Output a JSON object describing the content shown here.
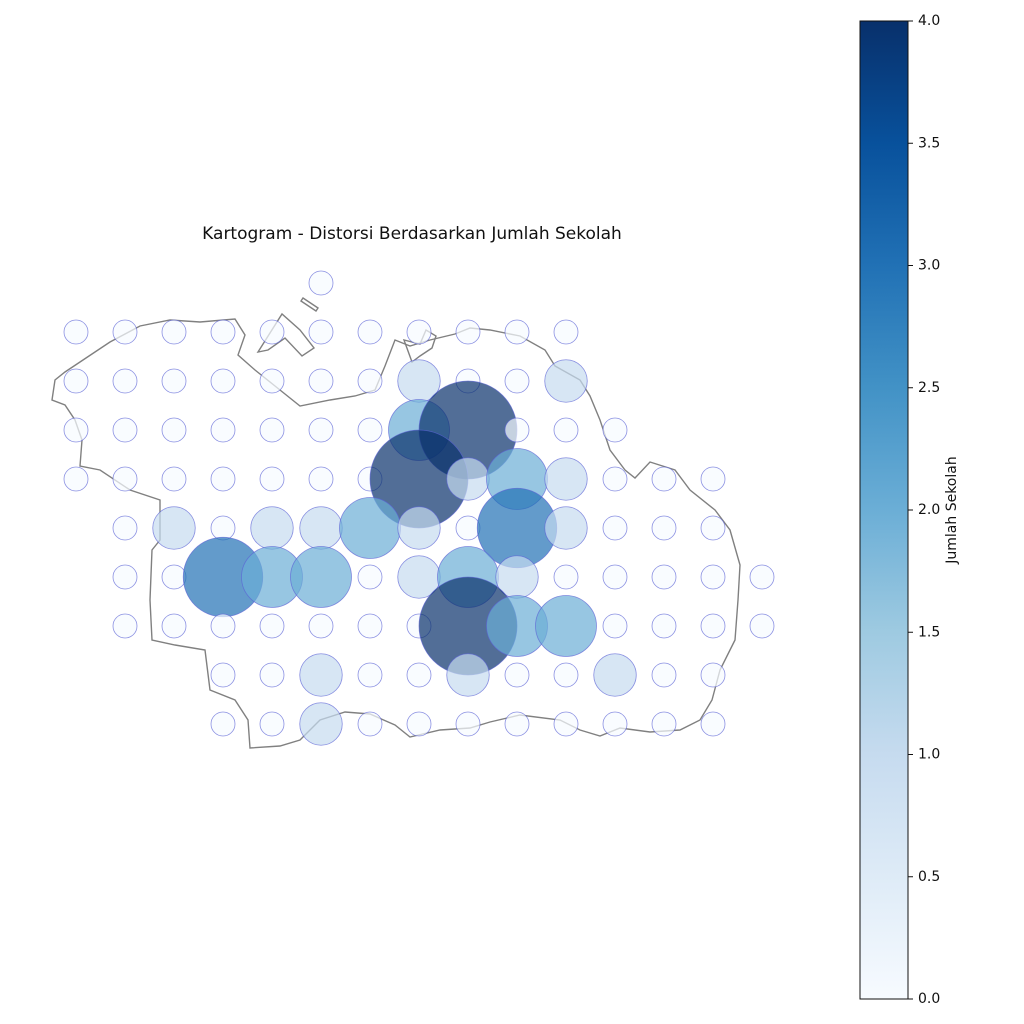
{
  "chart_data": {
    "type": "bubble-grid",
    "title": "Kartogram - Distorsi Berdasarkan Jumlah Sekolah",
    "colorbar_label": "Jumlah Sekolah",
    "clim": [
      0,
      4
    ],
    "cticks": [
      {
        "value": 0,
        "label": "0.0"
      },
      {
        "value": 0.5,
        "label": "0.5"
      },
      {
        "value": 1,
        "label": "1.0"
      },
      {
        "value": 1.5,
        "label": "1.5"
      },
      {
        "value": 2,
        "label": "2.0"
      },
      {
        "value": 2.5,
        "label": "2.5"
      },
      {
        "value": 3,
        "label": "3.0"
      },
      {
        "value": 3.5,
        "label": "3.5"
      },
      {
        "value": 4,
        "label": "4.0"
      }
    ],
    "colormap": [
      "#f7fbff",
      "#deebf7",
      "#c6dbef",
      "#9ecae1",
      "#6baed6",
      "#4292c6",
      "#2171b5",
      "#08519c",
      "#08306b"
    ],
    "alpha": 0.7,
    "edgecolor": "#5b63d6",
    "values": [
      [
        null,
        null,
        null,
        null,
        null,
        0,
        null,
        null,
        null,
        null,
        null,
        null,
        null,
        null,
        null
      ],
      [
        0,
        0,
        0,
        0,
        0,
        0,
        0,
        0,
        0,
        0,
        0,
        null,
        null,
        null,
        null
      ],
      [
        0,
        0,
        0,
        0,
        0,
        0,
        0,
        1,
        0,
        0,
        1,
        null,
        null,
        null,
        null
      ],
      [
        0,
        0,
        0,
        0,
        0,
        0,
        0,
        2,
        4,
        0,
        0,
        0,
        null,
        null,
        null
      ],
      [
        0,
        0,
        0,
        0,
        0,
        0,
        0,
        4,
        1,
        2,
        1,
        0,
        0,
        0,
        null
      ],
      [
        null,
        0,
        1,
        0,
        1,
        1,
        2,
        1,
        0,
        3,
        1,
        0,
        0,
        0,
        null
      ],
      [
        null,
        0,
        0,
        3,
        2,
        2,
        0,
        1,
        2,
        1,
        0,
        0,
        0,
        0,
        0
      ],
      [
        null,
        0,
        0,
        0,
        0,
        0,
        0,
        0,
        4,
        2,
        2,
        0,
        0,
        0,
        0
      ],
      [
        null,
        null,
        null,
        0,
        0,
        1,
        0,
        0,
        1,
        0,
        0,
        1,
        0,
        0,
        null
      ],
      [
        null,
        null,
        null,
        0,
        0,
        1,
        0,
        0,
        0,
        0,
        0,
        0,
        0,
        0,
        null
      ]
    ]
  }
}
